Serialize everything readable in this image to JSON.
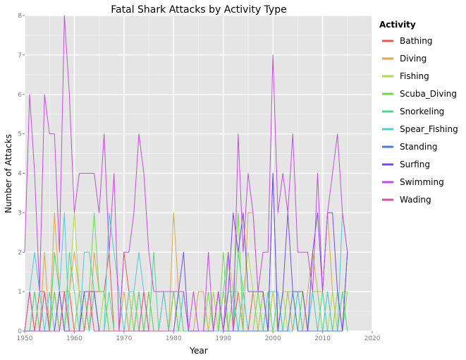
{
  "chart_data": {
    "type": "line",
    "title": "Fatal Shark Attacks by Activity Type",
    "xlabel": "Year",
    "ylabel": "Number of Attacks",
    "xlim": [
      1950,
      2020
    ],
    "ylim": [
      0,
      8
    ],
    "x_ticks": [
      1950,
      1960,
      1970,
      1980,
      1990,
      2000,
      2010,
      2020
    ],
    "y_ticks": [
      0,
      1,
      2,
      3,
      4,
      5,
      6,
      7,
      8
    ],
    "grid": true,
    "legend_title": "Activity",
    "legend_position": "right",
    "series": [
      {
        "name": "Bathing",
        "color": "#d95c4f",
        "x": [
          1950,
          1951,
          1952,
          1953,
          1954,
          1955,
          1956,
          1957,
          1958,
          1959,
          1960,
          1961,
          1962,
          1963,
          1964,
          1965,
          1966,
          1967,
          1968,
          1969,
          1970,
          1971,
          1972,
          1973,
          1974,
          1975,
          1976,
          1977,
          1978,
          1979,
          1980,
          1981,
          1982,
          1983,
          1984,
          1985,
          1986,
          1987,
          1988,
          1989,
          1990,
          1991,
          1992,
          1993,
          1994,
          1995,
          1996,
          1997,
          1998,
          1999,
          2000
        ],
        "y": [
          0,
          1,
          0,
          1,
          1,
          0,
          1,
          0,
          1,
          1,
          0,
          0,
          1,
          0,
          1,
          1,
          1,
          2,
          0,
          0,
          2,
          1,
          0,
          1,
          0,
          1,
          0,
          0,
          1,
          0,
          1,
          0,
          0,
          0,
          0,
          0,
          0,
          0,
          0,
          1,
          0,
          0,
          0,
          1,
          0,
          0,
          1,
          0,
          1,
          0,
          0
        ]
      },
      {
        "name": "Diving",
        "color": "#d9a84f",
        "x": [
          1950,
          1951,
          1952,
          1953,
          1954,
          1955,
          1956,
          1957,
          1958,
          1959,
          1960,
          1961,
          1962,
          1963,
          1964,
          1965,
          1966,
          1967,
          1968,
          1969,
          1970,
          1971,
          1972,
          1973,
          1974,
          1975,
          1976,
          1977,
          1978,
          1979,
          1980,
          1981,
          1982,
          1983,
          1984,
          1985,
          1986,
          1987,
          1988,
          1989,
          1990,
          1991,
          1992,
          1993,
          1994,
          1995,
          1996,
          1997,
          1998,
          1999,
          2000,
          2001,
          2002,
          2003,
          2004,
          2005,
          2006,
          2007,
          2008,
          2009,
          2010,
          2011,
          2012,
          2013,
          2014,
          2015
        ],
        "y": [
          0,
          0,
          1,
          0,
          2,
          0,
          3,
          1,
          1,
          1,
          2,
          1,
          1,
          0,
          2,
          1,
          1,
          0,
          0,
          0,
          1,
          0,
          0,
          0,
          0,
          0,
          0,
          0,
          0,
          0,
          3,
          1,
          0,
          0,
          0,
          1,
          1,
          0,
          1,
          0,
          1,
          0,
          1,
          1,
          0,
          3,
          3,
          1,
          1,
          0,
          1,
          0,
          1,
          1,
          0,
          1,
          0,
          1,
          2,
          1,
          1,
          3,
          1,
          0,
          1,
          0
        ]
      },
      {
        "name": "Fishing",
        "color": "#b0d94f",
        "x": [
          1950,
          1951,
          1952,
          1953,
          1954,
          1955,
          1956,
          1957,
          1958,
          1959,
          1960,
          1961,
          1962,
          1963,
          1964,
          1965,
          1966,
          1967,
          1968,
          1969,
          1970,
          1971,
          1972,
          1973,
          1974,
          1975,
          1976,
          1977,
          1978,
          1979,
          1980,
          1981,
          1982,
          1983,
          1984,
          1985,
          1986,
          1987,
          1988,
          1989,
          1990,
          1991,
          1992,
          1993,
          1994,
          1995,
          1996,
          1997,
          1998,
          1999,
          2000,
          2001,
          2002,
          2003,
          2004,
          2005,
          2006,
          2007,
          2008,
          2009,
          2010,
          2011,
          2012,
          2013,
          2014,
          2015
        ],
        "y": [
          0,
          1,
          0,
          0,
          1,
          0,
          2,
          1,
          0,
          1,
          3,
          1,
          0,
          1,
          1,
          0,
          1,
          0,
          0,
          0,
          0,
          1,
          0,
          0,
          1,
          0,
          0,
          0,
          0,
          0,
          1,
          0,
          0,
          0,
          0,
          0,
          0,
          0,
          1,
          0,
          1,
          2,
          1,
          0,
          1,
          2,
          1,
          0,
          1,
          0,
          1,
          0,
          1,
          0,
          1,
          0,
          1,
          0,
          1,
          0,
          1,
          0,
          1,
          0,
          1,
          1
        ]
      },
      {
        "name": "Scuba_Diving",
        "color": "#6ed94f",
        "x": [
          1950,
          1951,
          1952,
          1953,
          1954,
          1955,
          1956,
          1957,
          1958,
          1959,
          1960,
          1961,
          1962,
          1963,
          1964,
          1965,
          1966,
          1967,
          1968,
          1969,
          1970,
          1971,
          1972,
          1973,
          1974,
          1975,
          1976,
          1977,
          1978,
          1979,
          1980,
          1981,
          1982,
          1983,
          1984,
          1985,
          1986,
          1987,
          1988,
          1989,
          1990,
          1991,
          1992,
          1993,
          1994,
          1995,
          1996,
          1997,
          1998,
          1999,
          2000,
          2001,
          2002,
          2003,
          2004,
          2005,
          2006,
          2007,
          2008,
          2009,
          2010,
          2011,
          2012,
          2013,
          2014,
          2015
        ],
        "y": [
          0,
          0,
          0,
          0,
          0,
          0,
          1,
          0,
          1,
          0,
          0,
          1,
          0,
          1,
          3,
          1,
          1,
          0,
          0,
          0,
          0,
          0,
          1,
          0,
          0,
          1,
          0,
          0,
          0,
          0,
          1,
          0,
          1,
          0,
          0,
          0,
          0,
          1,
          0,
          0,
          2,
          0,
          1,
          3,
          0,
          0,
          0,
          1,
          0,
          0,
          0,
          0,
          0,
          1,
          1,
          0,
          1,
          0,
          1,
          1,
          0,
          1,
          0,
          1,
          0,
          1
        ]
      },
      {
        "name": "Snorkeling",
        "color": "#4fd98e",
        "x": [
          1950,
          1951,
          1952,
          1953,
          1954,
          1955,
          1956,
          1957,
          1958,
          1959,
          1960,
          1961,
          1962,
          1963,
          1964,
          1965,
          1966,
          1967,
          1968,
          1969,
          1970,
          1971,
          1972,
          1973,
          1974,
          1975,
          1976,
          1977,
          1978,
          1979,
          1980,
          1981,
          1982,
          1983,
          1984,
          1985,
          1986,
          1987,
          1988,
          1989,
          1990,
          1991,
          1992,
          1993,
          1994,
          1995,
          1996,
          1997,
          1998,
          1999,
          2000,
          2001,
          2002,
          2003,
          2004,
          2005,
          2006,
          2007,
          2008,
          2009,
          2010,
          2011,
          2012,
          2013,
          2014,
          2015
        ],
        "y": [
          0,
          0,
          1,
          0,
          1,
          0,
          2,
          1,
          0,
          2,
          1,
          0,
          1,
          0,
          1,
          0,
          0,
          1,
          0,
          0,
          0,
          0,
          0,
          1,
          0,
          0,
          2,
          0,
          0,
          0,
          0,
          1,
          0,
          0,
          0,
          0,
          0,
          0,
          0,
          0,
          1,
          2,
          0,
          2,
          1,
          0,
          0,
          0,
          0,
          1,
          0,
          1,
          0,
          0,
          0,
          1,
          0,
          0,
          0,
          0,
          1,
          0,
          0,
          0,
          1,
          0
        ]
      },
      {
        "name": "Spear_Fishing",
        "color": "#4fcad9",
        "x": [
          1950,
          1951,
          1952,
          1953,
          1954,
          1955,
          1956,
          1957,
          1958,
          1959,
          1960,
          1961,
          1962,
          1963,
          1964,
          1965,
          1966,
          1967,
          1968,
          1969,
          1970,
          1971,
          1972,
          1973,
          1974,
          1975,
          1976,
          1977,
          1978,
          1979,
          1980,
          1981,
          1982,
          1983,
          1984,
          1985,
          1986,
          1987,
          1988,
          1989,
          1990,
          1991,
          1992,
          1993,
          1994,
          1995,
          1996,
          1997,
          1998,
          1999,
          2000,
          2001,
          2002,
          2003,
          2004,
          2005,
          2006,
          2007,
          2008,
          2009,
          2010,
          2011,
          2012,
          2013,
          2014,
          2015
        ],
        "y": [
          0,
          1,
          2,
          1,
          0,
          1,
          0,
          1,
          3,
          0,
          0,
          0,
          2,
          2,
          1,
          0,
          0,
          3,
          2,
          1,
          0,
          1,
          1,
          2,
          1,
          0,
          0,
          0,
          1,
          0,
          0,
          0,
          1,
          0,
          0,
          0,
          0,
          0,
          0,
          0,
          0,
          1,
          1,
          0,
          1,
          0,
          0,
          0,
          0,
          1,
          1,
          1,
          0,
          0,
          0,
          1,
          0,
          0,
          1,
          0,
          0,
          1,
          0,
          0,
          3,
          2
        ]
      },
      {
        "name": "Standing",
        "color": "#4f7dd9",
        "x": [
          1990,
          1991,
          1992,
          1993,
          1994,
          1995,
          1996,
          1997,
          1998,
          1999,
          2000,
          2001,
          2002,
          2003,
          2004,
          2005,
          2006,
          2007,
          2008,
          2009,
          2010,
          2011,
          2012,
          2013,
          2014,
          2015
        ],
        "y": [
          0,
          0,
          0,
          0,
          0,
          0,
          0,
          0,
          0,
          0,
          4,
          0,
          0,
          0,
          1,
          0,
          0,
          0,
          0,
          0,
          0,
          0,
          0,
          0,
          0,
          2
        ]
      },
      {
        "name": "Surfing",
        "color": "#724fd9",
        "x": [
          1950,
          1951,
          1952,
          1953,
          1954,
          1955,
          1956,
          1957,
          1958,
          1959,
          1960,
          1961,
          1962,
          1963,
          1964,
          1965,
          1966,
          1967,
          1968,
          1969,
          1970,
          1971,
          1972,
          1973,
          1974,
          1975,
          1976,
          1977,
          1978,
          1979,
          1980,
          1981,
          1982,
          1983,
          1984,
          1985,
          1986,
          1987,
          1988,
          1989,
          1990,
          1991,
          1992,
          1993,
          1994,
          1995,
          1996,
          1997,
          1998,
          1999,
          2000,
          2001,
          2002,
          2003,
          2004,
          2005,
          2006,
          2007,
          2008,
          2009,
          2010,
          2011,
          2012,
          2013,
          2014,
          2015
        ],
        "y": [
          0,
          0,
          0,
          0,
          0,
          0,
          0,
          1,
          0,
          0,
          0,
          0,
          1,
          1,
          1,
          0,
          0,
          0,
          0,
          0,
          0,
          0,
          0,
          0,
          0,
          0,
          0,
          0,
          0,
          0,
          0,
          1,
          2,
          0,
          0,
          0,
          0,
          0,
          0,
          1,
          0,
          1,
          3,
          2,
          3,
          1,
          1,
          1,
          1,
          0,
          4,
          0,
          1,
          3,
          1,
          1,
          1,
          0,
          2,
          3,
          1,
          3,
          3,
          1,
          0,
          2
        ]
      },
      {
        "name": "Swimming",
        "color": "#c34fd9",
        "x": [
          1950,
          1951,
          1952,
          1953,
          1954,
          1955,
          1956,
          1957,
          1958,
          1959,
          1960,
          1961,
          1962,
          1963,
          1964,
          1965,
          1966,
          1967,
          1968,
          1969,
          1970,
          1971,
          1972,
          1973,
          1974,
          1975,
          1976,
          1977,
          1978,
          1979,
          1980,
          1981,
          1982,
          1983,
          1984,
          1985,
          1986,
          1987,
          1988,
          1989,
          1990,
          1991,
          1992,
          1993,
          1994,
          1995,
          1996,
          1997,
          1998,
          1999,
          2000,
          2001,
          2002,
          2003,
          2004,
          2005,
          2006,
          2007,
          2008,
          2009,
          2010,
          2011,
          2012,
          2013,
          2014,
          2015
        ],
        "y": [
          2,
          6,
          4,
          1,
          6,
          5,
          5,
          2,
          8,
          6,
          3,
          4,
          4,
          4,
          4,
          3,
          5,
          2,
          4,
          0,
          2,
          2,
          3,
          5,
          4,
          2,
          1,
          1,
          1,
          1,
          1,
          1,
          1,
          0,
          1,
          0,
          0,
          2,
          0,
          1,
          0,
          2,
          0,
          5,
          2,
          4,
          3,
          1,
          2,
          2,
          7,
          3,
          4,
          3,
          5,
          2,
          2,
          2,
          1,
          4,
          1,
          3,
          4,
          5,
          3,
          2
        ]
      },
      {
        "name": "Wading",
        "color": "#d94fa0",
        "x": [
          1950,
          1951,
          1952,
          1953,
          1954,
          1955,
          1956,
          1957,
          1958,
          1959,
          1960,
          1961,
          1962,
          1963,
          1964,
          1965,
          1966,
          1967,
          1968,
          1969,
          1970,
          1971,
          1972,
          1973,
          1974,
          1975,
          1976,
          1977,
          1978,
          1979,
          1980
        ],
        "y": [
          0,
          1,
          0,
          0,
          1,
          0,
          0,
          0,
          1,
          0,
          0,
          0,
          0,
          1,
          0,
          0,
          0,
          0,
          0,
          0,
          0,
          0,
          0,
          0,
          1,
          0,
          0,
          0,
          0,
          0,
          0
        ]
      }
    ]
  }
}
